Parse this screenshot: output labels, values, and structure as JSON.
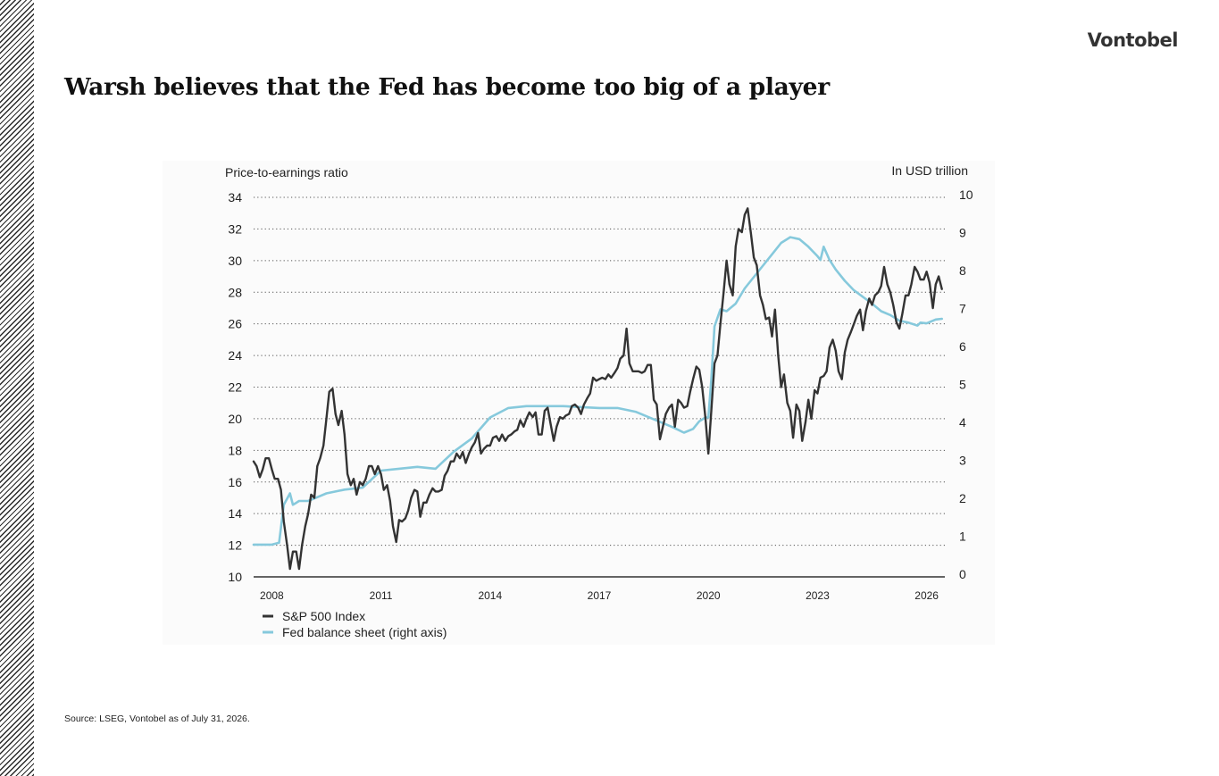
{
  "brand": "Vontobel",
  "title": "Warsh believes that the Fed has become too big of a player",
  "source": "Source: LSEG, Vontobel as of July 31, 2026.",
  "colors": {
    "sp500": "#333333",
    "fed": "#86c9dc"
  },
  "chart_data": {
    "type": "line",
    "y_left_label": "Price-to-earnings ratio",
    "y_right_label": "In USD trillion",
    "y_left_ticks": [
      "34",
      "32",
      "30",
      "28",
      "26",
      "24",
      "22",
      "20",
      "18",
      "16",
      "14",
      "12",
      "10"
    ],
    "y_right_ticks": [
      "10",
      "9",
      "8",
      "7",
      "6",
      "5",
      "4",
      "3",
      "2",
      "1",
      "0"
    ],
    "x_ticks": [
      "2008",
      "2011",
      "2014",
      "2017",
      "2020",
      "2023",
      "2026"
    ],
    "ylim_left": [
      10,
      34
    ],
    "ylim_right": [
      0,
      10
    ],
    "xlim": [
      2007.5,
      2026.5
    ],
    "grid": "horizontal dotted",
    "legend_position": "bottom-left",
    "series": [
      {
        "name": "S&P 500 Index",
        "axis": "left",
        "points": [
          [
            2007.5,
            17.3
          ],
          [
            2007.58,
            17.0
          ],
          [
            2007.67,
            16.3
          ],
          [
            2007.75,
            16.8
          ],
          [
            2007.83,
            17.5
          ],
          [
            2007.92,
            17.5
          ],
          [
            2008.0,
            16.8
          ],
          [
            2008.08,
            16.2
          ],
          [
            2008.17,
            16.2
          ],
          [
            2008.25,
            15.5
          ],
          [
            2008.33,
            13.5
          ],
          [
            2008.42,
            12.0
          ],
          [
            2008.5,
            10.5
          ],
          [
            2008.58,
            11.6
          ],
          [
            2008.67,
            11.6
          ],
          [
            2008.75,
            10.5
          ],
          [
            2008.83,
            12.0
          ],
          [
            2008.92,
            13.2
          ],
          [
            2009.0,
            14.0
          ],
          [
            2009.08,
            15.2
          ],
          [
            2009.17,
            15.0
          ],
          [
            2009.25,
            17.0
          ],
          [
            2009.33,
            17.5
          ],
          [
            2009.42,
            18.3
          ],
          [
            2009.5,
            20.0
          ],
          [
            2009.58,
            21.7
          ],
          [
            2009.67,
            21.9
          ],
          [
            2009.75,
            20.3
          ],
          [
            2009.83,
            19.6
          ],
          [
            2009.92,
            20.5
          ],
          [
            2010.0,
            19.0
          ],
          [
            2010.08,
            16.5
          ],
          [
            2010.17,
            15.8
          ],
          [
            2010.25,
            16.2
          ],
          [
            2010.33,
            15.2
          ],
          [
            2010.42,
            16.0
          ],
          [
            2010.5,
            15.8
          ],
          [
            2010.58,
            16.2
          ],
          [
            2010.67,
            17.0
          ],
          [
            2010.75,
            17.0
          ],
          [
            2010.83,
            16.5
          ],
          [
            2010.92,
            17.0
          ],
          [
            2011.0,
            16.5
          ],
          [
            2011.08,
            15.5
          ],
          [
            2011.17,
            15.8
          ],
          [
            2011.25,
            14.8
          ],
          [
            2011.33,
            13.2
          ],
          [
            2011.42,
            12.2
          ],
          [
            2011.5,
            13.6
          ],
          [
            2011.58,
            13.5
          ],
          [
            2011.67,
            13.7
          ],
          [
            2011.75,
            14.2
          ],
          [
            2011.83,
            15.0
          ],
          [
            2011.92,
            15.5
          ],
          [
            2012.0,
            15.4
          ],
          [
            2012.08,
            13.8
          ],
          [
            2012.17,
            14.7
          ],
          [
            2012.25,
            14.7
          ],
          [
            2012.33,
            15.2
          ],
          [
            2012.42,
            15.6
          ],
          [
            2012.5,
            15.4
          ],
          [
            2012.58,
            15.4
          ],
          [
            2012.67,
            15.5
          ],
          [
            2012.75,
            16.4
          ],
          [
            2012.83,
            16.7
          ],
          [
            2012.92,
            17.3
          ],
          [
            2013.0,
            17.3
          ],
          [
            2013.08,
            17.8
          ],
          [
            2013.17,
            17.5
          ],
          [
            2013.25,
            17.9
          ],
          [
            2013.33,
            17.2
          ],
          [
            2013.42,
            17.8
          ],
          [
            2013.5,
            18.2
          ],
          [
            2013.58,
            18.5
          ],
          [
            2013.67,
            19.1
          ],
          [
            2013.75,
            17.8
          ],
          [
            2013.83,
            18.1
          ],
          [
            2013.92,
            18.3
          ],
          [
            2014.0,
            18.3
          ],
          [
            2014.08,
            18.8
          ],
          [
            2014.17,
            18.9
          ],
          [
            2014.25,
            18.6
          ],
          [
            2014.33,
            19.0
          ],
          [
            2014.42,
            18.6
          ],
          [
            2014.5,
            18.9
          ],
          [
            2014.58,
            19.0
          ],
          [
            2014.67,
            19.2
          ],
          [
            2014.75,
            19.3
          ],
          [
            2014.83,
            19.9
          ],
          [
            2014.92,
            19.5
          ],
          [
            2015.0,
            20.0
          ],
          [
            2015.08,
            20.4
          ],
          [
            2015.17,
            20.1
          ],
          [
            2015.25,
            20.4
          ],
          [
            2015.33,
            19.0
          ],
          [
            2015.42,
            19.0
          ],
          [
            2015.5,
            20.5
          ],
          [
            2015.58,
            20.7
          ],
          [
            2015.67,
            19.6
          ],
          [
            2015.75,
            18.6
          ],
          [
            2015.83,
            19.5
          ],
          [
            2015.92,
            20.1
          ],
          [
            2016.0,
            20.0
          ],
          [
            2016.08,
            20.2
          ],
          [
            2016.17,
            20.3
          ],
          [
            2016.25,
            20.8
          ],
          [
            2016.33,
            20.9
          ],
          [
            2016.42,
            20.7
          ],
          [
            2016.5,
            20.3
          ],
          [
            2016.58,
            20.9
          ],
          [
            2016.67,
            21.3
          ],
          [
            2016.75,
            21.6
          ],
          [
            2016.83,
            22.6
          ],
          [
            2016.92,
            22.4
          ],
          [
            2017.0,
            22.5
          ],
          [
            2017.08,
            22.6
          ],
          [
            2017.17,
            22.5
          ],
          [
            2017.25,
            22.8
          ],
          [
            2017.33,
            22.6
          ],
          [
            2017.42,
            22.9
          ],
          [
            2017.5,
            23.2
          ],
          [
            2017.58,
            23.8
          ],
          [
            2017.67,
            24.0
          ],
          [
            2017.75,
            25.7
          ],
          [
            2017.83,
            23.5
          ],
          [
            2017.92,
            23.0
          ],
          [
            2018.0,
            23.0
          ],
          [
            2018.08,
            23.0
          ],
          [
            2018.17,
            22.9
          ],
          [
            2018.25,
            23.0
          ],
          [
            2018.33,
            23.4
          ],
          [
            2018.42,
            23.4
          ],
          [
            2018.5,
            21.2
          ],
          [
            2018.58,
            20.9
          ],
          [
            2018.67,
            18.7
          ],
          [
            2018.75,
            19.5
          ],
          [
            2018.83,
            20.3
          ],
          [
            2018.92,
            20.7
          ],
          [
            2019.0,
            20.9
          ],
          [
            2019.08,
            19.5
          ],
          [
            2019.17,
            21.2
          ],
          [
            2019.25,
            21.0
          ],
          [
            2019.33,
            20.7
          ],
          [
            2019.42,
            20.8
          ],
          [
            2019.5,
            21.7
          ],
          [
            2019.58,
            22.5
          ],
          [
            2019.67,
            23.3
          ],
          [
            2019.75,
            23.1
          ],
          [
            2019.83,
            22.0
          ],
          [
            2019.92,
            20.0
          ],
          [
            2020.0,
            17.8
          ],
          [
            2020.08,
            20.5
          ],
          [
            2020.17,
            23.5
          ],
          [
            2020.25,
            24.0
          ],
          [
            2020.33,
            26.0
          ],
          [
            2020.42,
            28.0
          ],
          [
            2020.5,
            30.0
          ],
          [
            2020.58,
            28.5
          ],
          [
            2020.67,
            27.8
          ],
          [
            2020.75,
            30.9
          ],
          [
            2020.83,
            32.0
          ],
          [
            2020.92,
            31.8
          ],
          [
            2021.0,
            32.9
          ],
          [
            2021.08,
            33.3
          ],
          [
            2021.17,
            31.7
          ],
          [
            2021.25,
            30.2
          ],
          [
            2021.33,
            29.7
          ],
          [
            2021.42,
            27.8
          ],
          [
            2021.5,
            27.2
          ],
          [
            2021.58,
            26.3
          ],
          [
            2021.67,
            26.4
          ],
          [
            2021.75,
            25.2
          ],
          [
            2021.83,
            26.9
          ],
          [
            2021.92,
            24.0
          ],
          [
            2022.0,
            22.0
          ],
          [
            2022.08,
            22.8
          ],
          [
            2022.17,
            21.0
          ],
          [
            2022.25,
            20.5
          ],
          [
            2022.33,
            18.8
          ],
          [
            2022.42,
            20.9
          ],
          [
            2022.5,
            20.5
          ],
          [
            2022.58,
            18.6
          ],
          [
            2022.67,
            19.8
          ],
          [
            2022.75,
            21.2
          ],
          [
            2022.83,
            20.0
          ],
          [
            2022.92,
            21.8
          ],
          [
            2023.0,
            21.6
          ],
          [
            2023.08,
            22.6
          ],
          [
            2023.17,
            22.7
          ],
          [
            2023.25,
            23.0
          ],
          [
            2023.33,
            24.5
          ],
          [
            2023.42,
            25.0
          ],
          [
            2023.5,
            24.3
          ],
          [
            2023.58,
            23.0
          ],
          [
            2023.67,
            22.5
          ],
          [
            2023.75,
            24.2
          ],
          [
            2023.83,
            25.0
          ],
          [
            2023.92,
            25.5
          ],
          [
            2024.0,
            26.0
          ],
          [
            2024.08,
            26.5
          ],
          [
            2024.17,
            26.9
          ],
          [
            2024.25,
            25.6
          ],
          [
            2024.33,
            26.8
          ],
          [
            2024.42,
            27.6
          ],
          [
            2024.5,
            27.2
          ],
          [
            2024.58,
            27.8
          ],
          [
            2024.67,
            28.0
          ],
          [
            2024.75,
            28.4
          ],
          [
            2024.83,
            29.6
          ],
          [
            2024.92,
            28.5
          ],
          [
            2025.0,
            28.0
          ],
          [
            2025.08,
            27.2
          ],
          [
            2025.17,
            26.1
          ],
          [
            2025.25,
            25.7
          ],
          [
            2025.33,
            26.6
          ],
          [
            2025.42,
            27.8
          ],
          [
            2025.5,
            27.8
          ],
          [
            2025.58,
            28.5
          ],
          [
            2025.67,
            29.6
          ],
          [
            2025.75,
            29.3
          ],
          [
            2025.83,
            28.8
          ],
          [
            2025.92,
            28.8
          ],
          [
            2026.0,
            29.3
          ],
          [
            2026.08,
            28.6
          ],
          [
            2026.17,
            27.0
          ],
          [
            2026.25,
            28.5
          ],
          [
            2026.33,
            29.0
          ],
          [
            2026.42,
            28.2
          ]
        ]
      },
      {
        "name": "Fed balance sheet (right axis)",
        "axis": "right",
        "points": [
          [
            2007.5,
            0.85
          ],
          [
            2008.0,
            0.85
          ],
          [
            2008.2,
            0.9
          ],
          [
            2008.33,
            1.9
          ],
          [
            2008.5,
            2.2
          ],
          [
            2008.58,
            1.9
          ],
          [
            2008.67,
            1.95
          ],
          [
            2008.75,
            2.0
          ],
          [
            2009.0,
            2.0
          ],
          [
            2009.25,
            2.1
          ],
          [
            2009.5,
            2.2
          ],
          [
            2010.0,
            2.3
          ],
          [
            2010.5,
            2.35
          ],
          [
            2011.0,
            2.8
          ],
          [
            2011.5,
            2.85
          ],
          [
            2012.0,
            2.9
          ],
          [
            2012.5,
            2.85
          ],
          [
            2013.0,
            3.3
          ],
          [
            2013.5,
            3.65
          ],
          [
            2014.0,
            4.2
          ],
          [
            2014.5,
            4.45
          ],
          [
            2015.0,
            4.5
          ],
          [
            2016.0,
            4.5
          ],
          [
            2017.0,
            4.45
          ],
          [
            2017.5,
            4.45
          ],
          [
            2018.0,
            4.35
          ],
          [
            2018.5,
            4.15
          ],
          [
            2019.0,
            3.95
          ],
          [
            2019.33,
            3.8
          ],
          [
            2019.58,
            3.9
          ],
          [
            2019.75,
            4.1
          ],
          [
            2019.92,
            4.2
          ],
          [
            2020.0,
            4.2
          ],
          [
            2020.08,
            5.2
          ],
          [
            2020.17,
            6.6
          ],
          [
            2020.33,
            7.05
          ],
          [
            2020.5,
            7.0
          ],
          [
            2020.75,
            7.2
          ],
          [
            2021.0,
            7.6
          ],
          [
            2021.5,
            8.2
          ],
          [
            2021.75,
            8.5
          ],
          [
            2022.0,
            8.8
          ],
          [
            2022.25,
            8.95
          ],
          [
            2022.5,
            8.9
          ],
          [
            2022.75,
            8.7
          ],
          [
            2023.0,
            8.45
          ],
          [
            2023.08,
            8.35
          ],
          [
            2023.17,
            8.7
          ],
          [
            2023.33,
            8.35
          ],
          [
            2023.5,
            8.1
          ],
          [
            2023.75,
            7.8
          ],
          [
            2024.0,
            7.55
          ],
          [
            2024.5,
            7.2
          ],
          [
            2024.75,
            7.0
          ],
          [
            2025.0,
            6.9
          ],
          [
            2025.25,
            6.75
          ],
          [
            2025.5,
            6.7
          ],
          [
            2025.75,
            6.62
          ],
          [
            2025.83,
            6.7
          ],
          [
            2026.0,
            6.68
          ],
          [
            2026.25,
            6.78
          ],
          [
            2026.42,
            6.8
          ]
        ]
      }
    ]
  }
}
